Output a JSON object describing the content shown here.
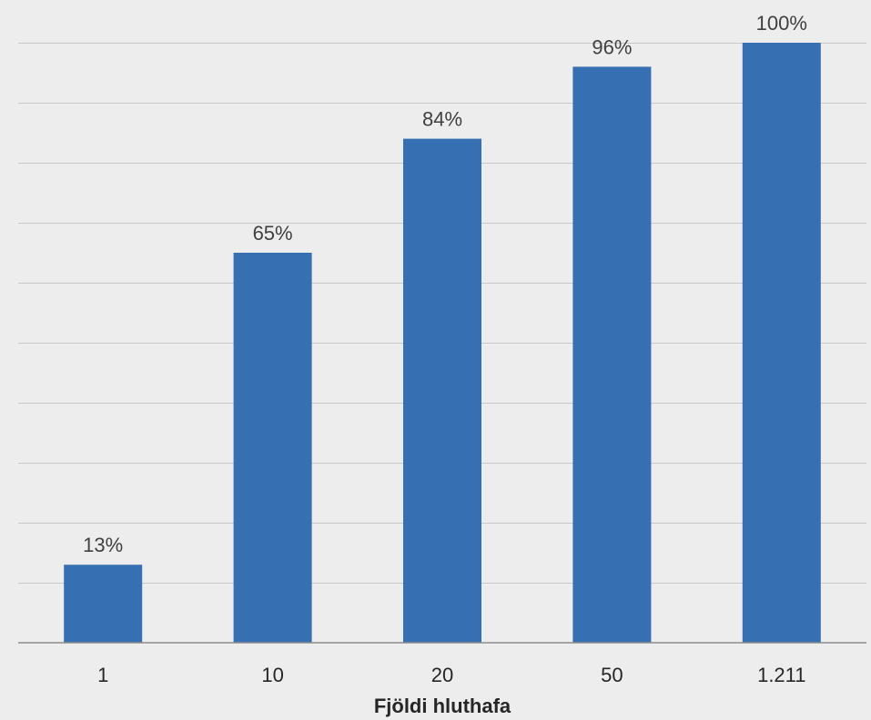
{
  "chart_data": {
    "type": "bar",
    "title": "",
    "xlabel": "Fjöldi hluthafa",
    "ylabel": "",
    "categories": [
      "1",
      "10",
      "20",
      "50",
      "1.211"
    ],
    "values": [
      13,
      65,
      84,
      96,
      100
    ],
    "data_labels": [
      "13%",
      "65%",
      "84%",
      "96%",
      "100%"
    ],
    "ylim": [
      0,
      100
    ],
    "y_gridlines": true,
    "y_tick_labels_shown": false,
    "legend": "none",
    "bar_color": "#3670b2",
    "background_color": "#ededed"
  }
}
